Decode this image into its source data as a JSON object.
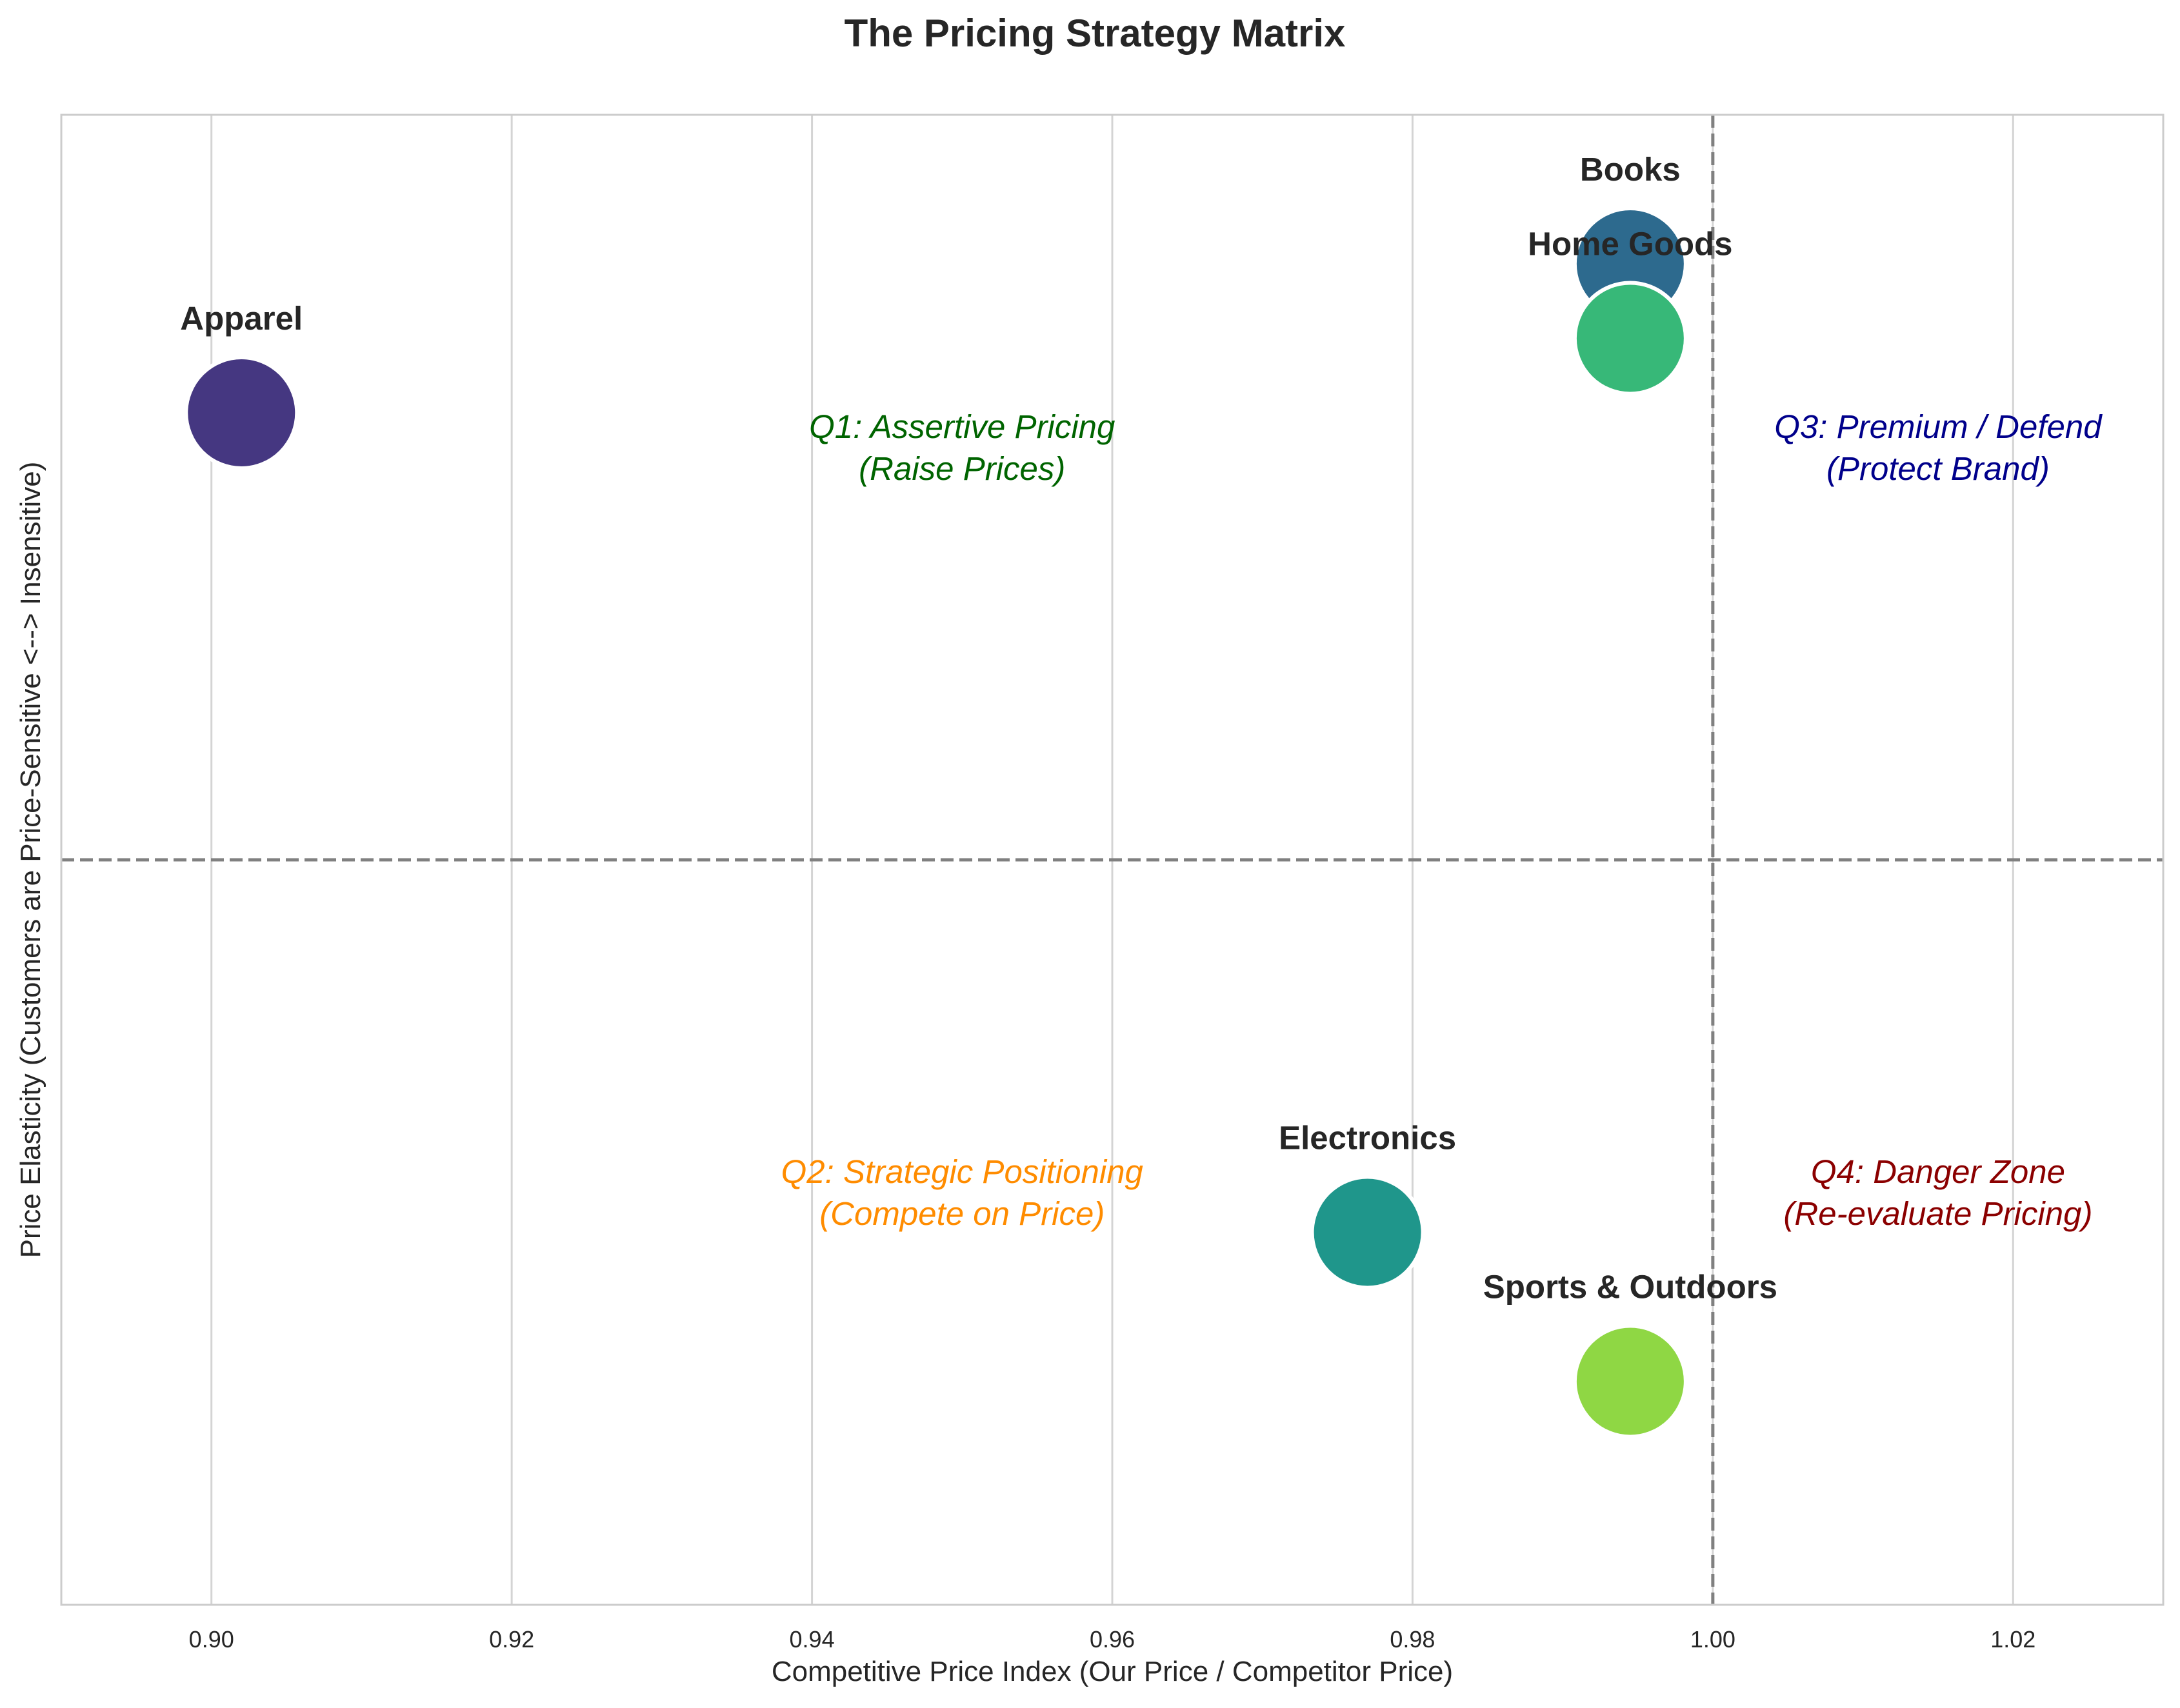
{
  "chart_data": {
    "type": "scatter",
    "title": "The Pricing Strategy Matrix",
    "xlabel": "Competitive Price Index (Our Price / Competitor Price)",
    "ylabel": "Price Elasticity (Customers are Price-Sensitive <--> Insensitive)",
    "xlim": [
      0.89,
      1.03
    ],
    "xticks": [
      "0.90",
      "0.92",
      "0.94",
      "0.96",
      "0.98",
      "1.00",
      "1.02"
    ],
    "xtick_values": [
      0.9,
      0.92,
      0.94,
      0.96,
      0.98,
      1.0,
      1.02
    ],
    "ylim": [
      -3.0,
      1.0
    ],
    "yticks_shown": false,
    "grid": "vertical",
    "reference_lines": {
      "x": 1.0,
      "y": -1.0,
      "style": "dashed",
      "color": "#808080"
    },
    "points": [
      {
        "label": "Apparel",
        "x": 0.902,
        "y": 0.2,
        "color": "#453781"
      },
      {
        "label": "Books",
        "x": 0.9945,
        "y": 0.6,
        "color": "#2d6a8e"
      },
      {
        "label": "Home Goods",
        "x": 0.9945,
        "y": 0.4,
        "color": "#37b878"
      },
      {
        "label": "Electronics",
        "x": 0.977,
        "y": -2.0,
        "color": "#1f968b"
      },
      {
        "label": "Sports & Outdoors",
        "x": 0.9945,
        "y": -2.4,
        "color": "#8fd744"
      }
    ],
    "quadrants": [
      {
        "id": "q1",
        "line1": "Q1: Assertive Pricing",
        "line2": "(Raise Prices)",
        "x": 0.95,
        "y": 0.1,
        "color": "#006400"
      },
      {
        "id": "q2",
        "line1": "Q2: Strategic Positioning",
        "line2": "(Compete on Price)",
        "x": 0.95,
        "y": -1.9,
        "color": "#ff8c00"
      },
      {
        "id": "q3",
        "line1": "Q3: Premium / Defend",
        "line2": "(Protect Brand)",
        "x": 1.015,
        "y": 0.1,
        "color": "#00008b"
      },
      {
        "id": "q4",
        "line1": "Q4: Danger Zone",
        "line2": "(Re-evaluate Pricing)",
        "x": 1.015,
        "y": -1.9,
        "color": "#8b0000"
      }
    ]
  }
}
